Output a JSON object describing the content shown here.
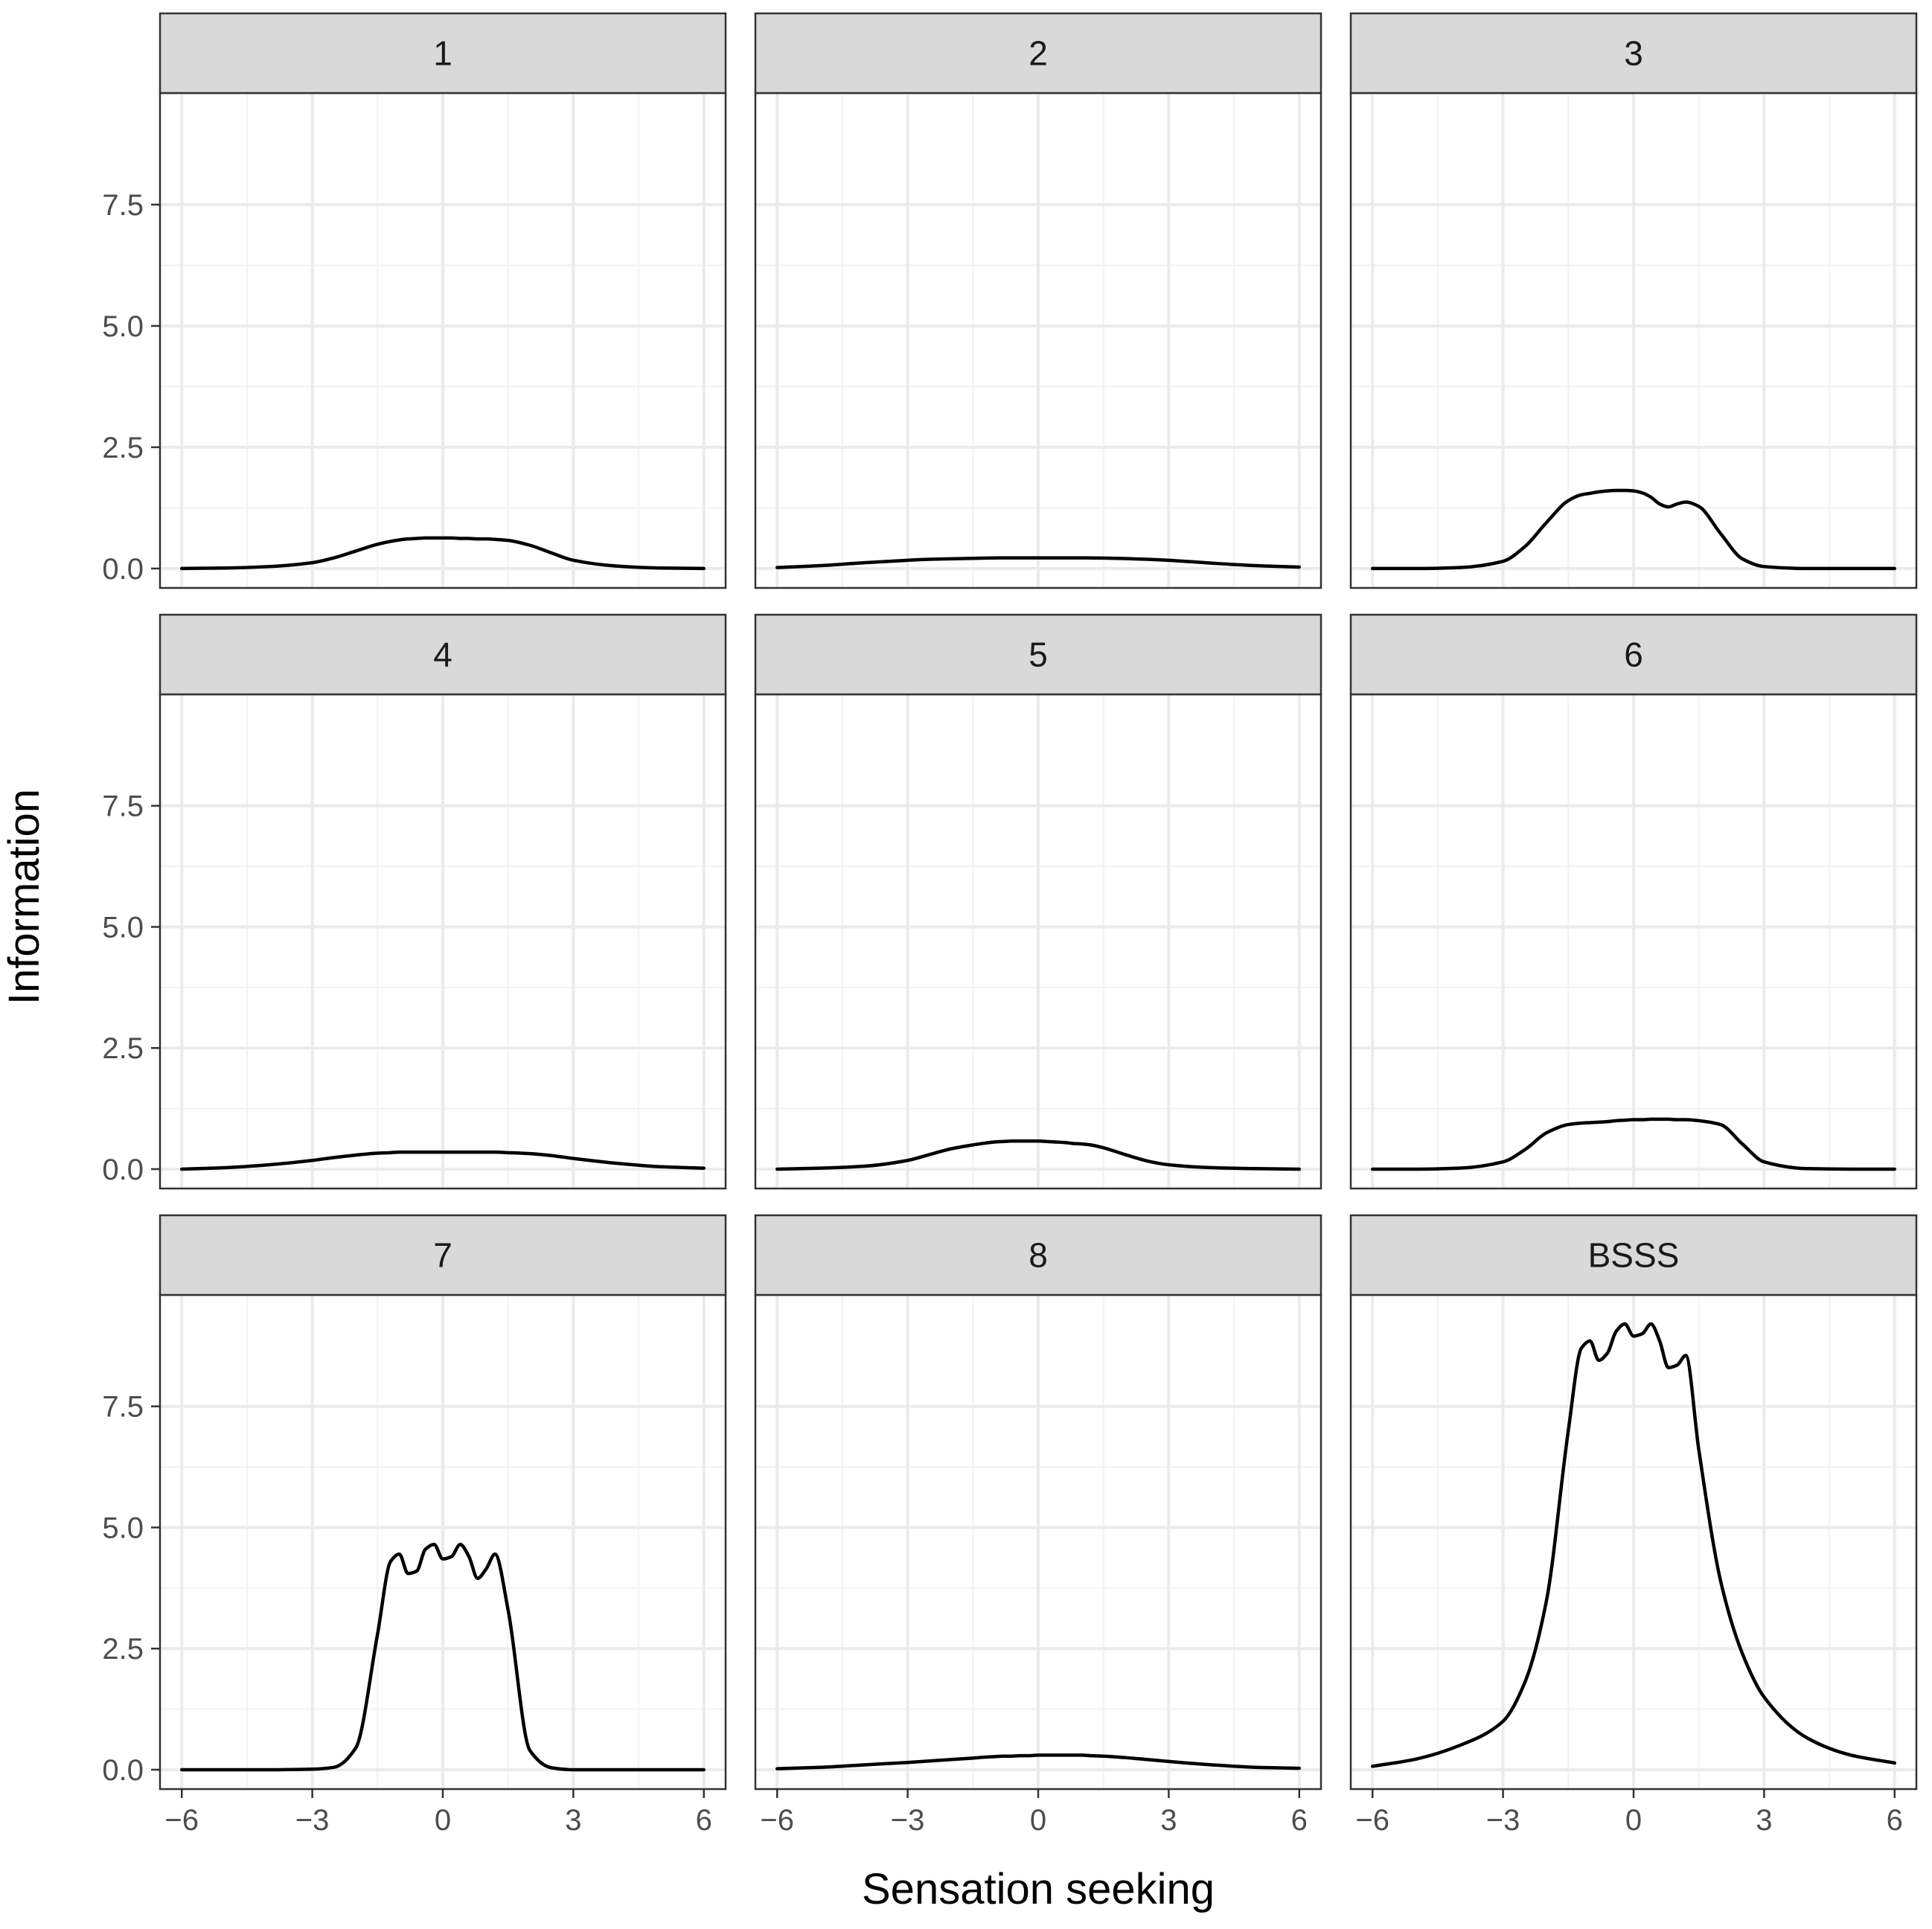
{
  "chart_data": {
    "type": "line",
    "layout": "3x3 facet grid",
    "xlabel": "Sensation seeking",
    "ylabel": "Information",
    "xlim": [
      -6.5,
      6.5
    ],
    "ylim": [
      -0.4,
      9.8
    ],
    "x_ticks": [
      -6,
      -3,
      0,
      3,
      6
    ],
    "x_tick_labels": [
      "−6",
      "−3",
      "0",
      "3",
      "6"
    ],
    "y_ticks": [
      0,
      2.5,
      5,
      7.5
    ],
    "y_tick_labels": [
      "0.0",
      "2.5",
      "5.0",
      "7.5"
    ],
    "x": [
      -6,
      -5,
      -4,
      -3,
      -2.5,
      -2,
      -1.5,
      -1.2,
      -1,
      -0.8,
      -0.6,
      -0.4,
      -0.2,
      0,
      0.2,
      0.4,
      0.6,
      0.8,
      1,
      1.2,
      1.5,
      2,
      2.5,
      3,
      4,
      5,
      6
    ],
    "panels": [
      {
        "label": "1",
        "values": [
          0.0,
          0.01,
          0.04,
          0.12,
          0.22,
          0.36,
          0.5,
          0.56,
          0.59,
          0.61,
          0.62,
          0.63,
          0.63,
          0.63,
          0.63,
          0.62,
          0.62,
          0.61,
          0.61,
          0.6,
          0.58,
          0.48,
          0.32,
          0.17,
          0.05,
          0.01,
          0.0
        ]
      },
      {
        "label": "2",
        "values": [
          0.02,
          0.06,
          0.12,
          0.17,
          0.19,
          0.2,
          0.21,
          0.215,
          0.218,
          0.22,
          0.22,
          0.22,
          0.22,
          0.22,
          0.22,
          0.22,
          0.22,
          0.22,
          0.22,
          0.218,
          0.215,
          0.205,
          0.19,
          0.17,
          0.11,
          0.06,
          0.03
        ]
      },
      {
        "label": "3",
        "values": [
          0.0,
          0.0,
          0.02,
          0.15,
          0.45,
          0.95,
          1.4,
          1.52,
          1.55,
          1.58,
          1.6,
          1.61,
          1.61,
          1.6,
          1.56,
          1.47,
          1.33,
          1.27,
          1.33,
          1.37,
          1.28,
          0.72,
          0.2,
          0.04,
          0.0,
          0.0,
          0.0
        ]
      },
      {
        "label": "4",
        "values": [
          0.0,
          0.03,
          0.09,
          0.18,
          0.24,
          0.29,
          0.33,
          0.34,
          0.35,
          0.35,
          0.35,
          0.35,
          0.35,
          0.35,
          0.35,
          0.35,
          0.35,
          0.35,
          0.35,
          0.35,
          0.34,
          0.32,
          0.28,
          0.22,
          0.12,
          0.05,
          0.02
        ]
      },
      {
        "label": "5",
        "values": [
          0.0,
          0.02,
          0.06,
          0.18,
          0.3,
          0.42,
          0.5,
          0.54,
          0.56,
          0.57,
          0.58,
          0.58,
          0.58,
          0.58,
          0.57,
          0.56,
          0.55,
          0.53,
          0.52,
          0.5,
          0.44,
          0.3,
          0.17,
          0.09,
          0.03,
          0.01,
          0.0
        ]
      },
      {
        "label": "6",
        "values": [
          0.0,
          0.0,
          0.02,
          0.15,
          0.4,
          0.75,
          0.92,
          0.95,
          0.96,
          0.97,
          0.98,
          1.0,
          1.01,
          1.02,
          1.02,
          1.03,
          1.03,
          1.03,
          1.02,
          1.02,
          1.0,
          0.92,
          0.52,
          0.15,
          0.01,
          0.0,
          0.0
        ]
      },
      {
        "label": "7",
        "values": [
          0.0,
          0.0,
          0.0,
          0.01,
          0.05,
          0.45,
          2.8,
          4.3,
          4.45,
          4.05,
          4.1,
          4.55,
          4.65,
          4.35,
          4.4,
          4.65,
          4.4,
          3.95,
          4.15,
          4.45,
          3.3,
          0.4,
          0.04,
          0.0,
          0.0,
          0.0,
          0.0
        ]
      },
      {
        "label": "8",
        "values": [
          0.02,
          0.05,
          0.1,
          0.15,
          0.18,
          0.21,
          0.24,
          0.26,
          0.27,
          0.28,
          0.28,
          0.29,
          0.29,
          0.3,
          0.3,
          0.3,
          0.3,
          0.3,
          0.3,
          0.29,
          0.28,
          0.25,
          0.21,
          0.17,
          0.1,
          0.05,
          0.03
        ]
      },
      {
        "label": "BSSS",
        "values": [
          0.07,
          0.22,
          0.5,
          1.0,
          1.8,
          3.5,
          7.0,
          8.7,
          8.85,
          8.45,
          8.6,
          9.05,
          9.2,
          8.95,
          9.0,
          9.2,
          8.85,
          8.3,
          8.35,
          8.55,
          6.6,
          3.9,
          2.4,
          1.5,
          0.65,
          0.3,
          0.14
        ]
      }
    ]
  }
}
